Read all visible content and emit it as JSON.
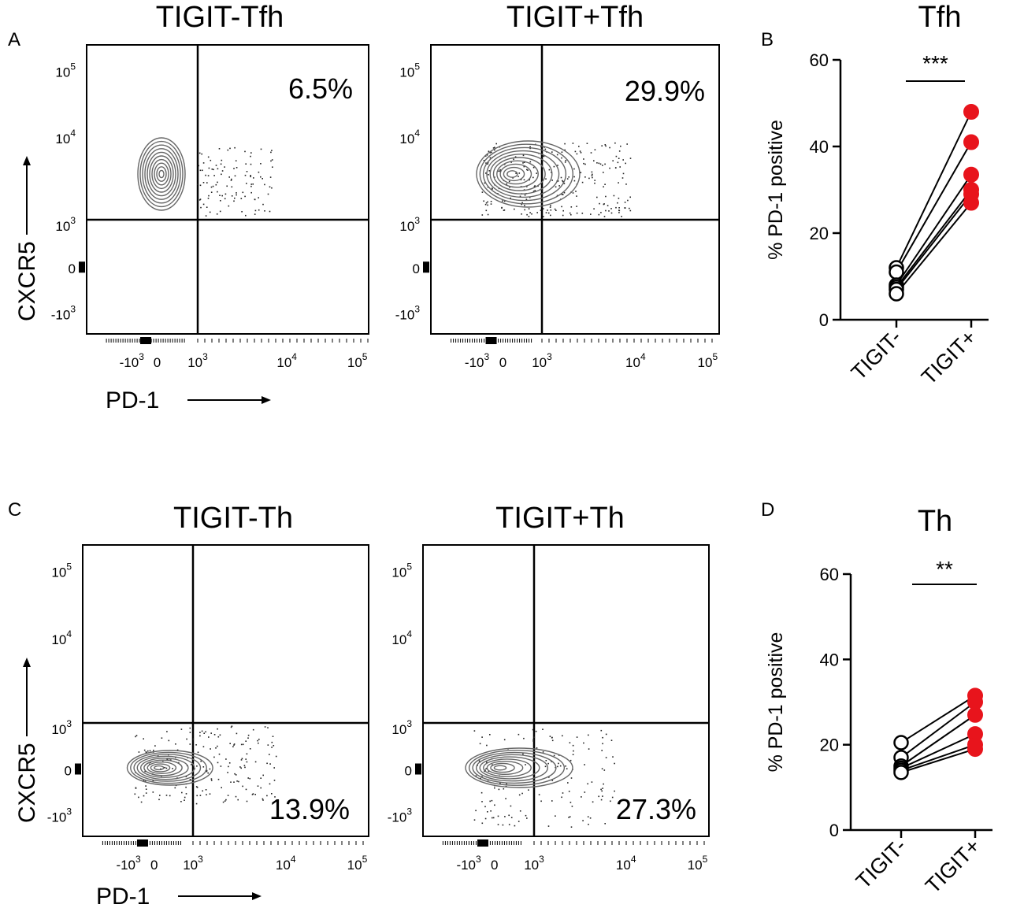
{
  "figure": {
    "panel_labels": [
      "A",
      "B",
      "C",
      "D"
    ],
    "flow_axis_labels": {
      "x": "PD-1",
      "y": "CXCR5"
    },
    "flow_tick_labels": {
      "x": [
        {
          "base": "-10",
          "exp": "3"
        },
        {
          "base": "0",
          "exp": ""
        },
        {
          "base": "10",
          "exp": "3"
        },
        {
          "base": "10",
          "exp": "4"
        },
        {
          "base": "10",
          "exp": "5"
        }
      ],
      "y": [
        {
          "base": "10",
          "exp": "5"
        },
        {
          "base": "10",
          "exp": "4"
        },
        {
          "base": "10",
          "exp": "3"
        },
        {
          "base": "0",
          "exp": ""
        },
        {
          "base": "-10",
          "exp": "3"
        }
      ]
    }
  },
  "chart_data": [
    {
      "panel": "A",
      "type": "scatter",
      "subtype": "flow-cytometry-contour",
      "title": "TIGIT-Tfh",
      "xlabel": "PD-1",
      "ylabel": "CXCR5",
      "quadrant_percent": "6.5%",
      "gated_quadrant": "upper-right"
    },
    {
      "panel": "A",
      "type": "scatter",
      "subtype": "flow-cytometry-contour",
      "title": "TIGIT+Tfh",
      "xlabel": "PD-1",
      "ylabel": "CXCR5",
      "quadrant_percent": "29.9%",
      "gated_quadrant": "upper-right"
    },
    {
      "panel": "B",
      "type": "line",
      "subtype": "paired-dot",
      "title": "Tfh",
      "ylabel": "% PD-1 positive",
      "ylim": [
        0,
        60
      ],
      "yticks": [
        0,
        20,
        40,
        60
      ],
      "categories": [
        "TIGIT-",
        "TIGIT+"
      ],
      "significance": "***",
      "marker_colors": {
        "TIGIT-": "#ffffff",
        "TIGIT+": "#e8141c"
      },
      "pairs": [
        [
          12,
          48
        ],
        [
          11,
          41
        ],
        [
          8,
          33.5
        ],
        [
          7.5,
          30
        ],
        [
          7,
          29
        ],
        [
          6,
          27
        ]
      ]
    },
    {
      "panel": "C",
      "type": "scatter",
      "subtype": "flow-cytometry-contour",
      "title": "TIGIT-Th",
      "xlabel": "PD-1",
      "ylabel": "CXCR5",
      "quadrant_percent": "13.9%",
      "gated_quadrant": "lower-right"
    },
    {
      "panel": "C",
      "type": "scatter",
      "subtype": "flow-cytometry-contour",
      "title": "TIGIT+Th",
      "xlabel": "PD-1",
      "ylabel": "CXCR5",
      "quadrant_percent": "27.3%",
      "gated_quadrant": "lower-right"
    },
    {
      "panel": "D",
      "type": "line",
      "subtype": "paired-dot",
      "title": "Th",
      "ylabel": "% PD-1 positive",
      "ylim": [
        0,
        60
      ],
      "yticks": [
        0,
        20,
        40,
        60
      ],
      "categories": [
        "TIGIT-",
        "TIGIT+"
      ],
      "significance": "**",
      "marker_colors": {
        "TIGIT-": "#ffffff",
        "TIGIT+": "#e8141c"
      },
      "pairs": [
        [
          20.5,
          31.5
        ],
        [
          17,
          30
        ],
        [
          15,
          27
        ],
        [
          14.5,
          22.5
        ],
        [
          14,
          20
        ],
        [
          13.5,
          19
        ]
      ]
    }
  ]
}
